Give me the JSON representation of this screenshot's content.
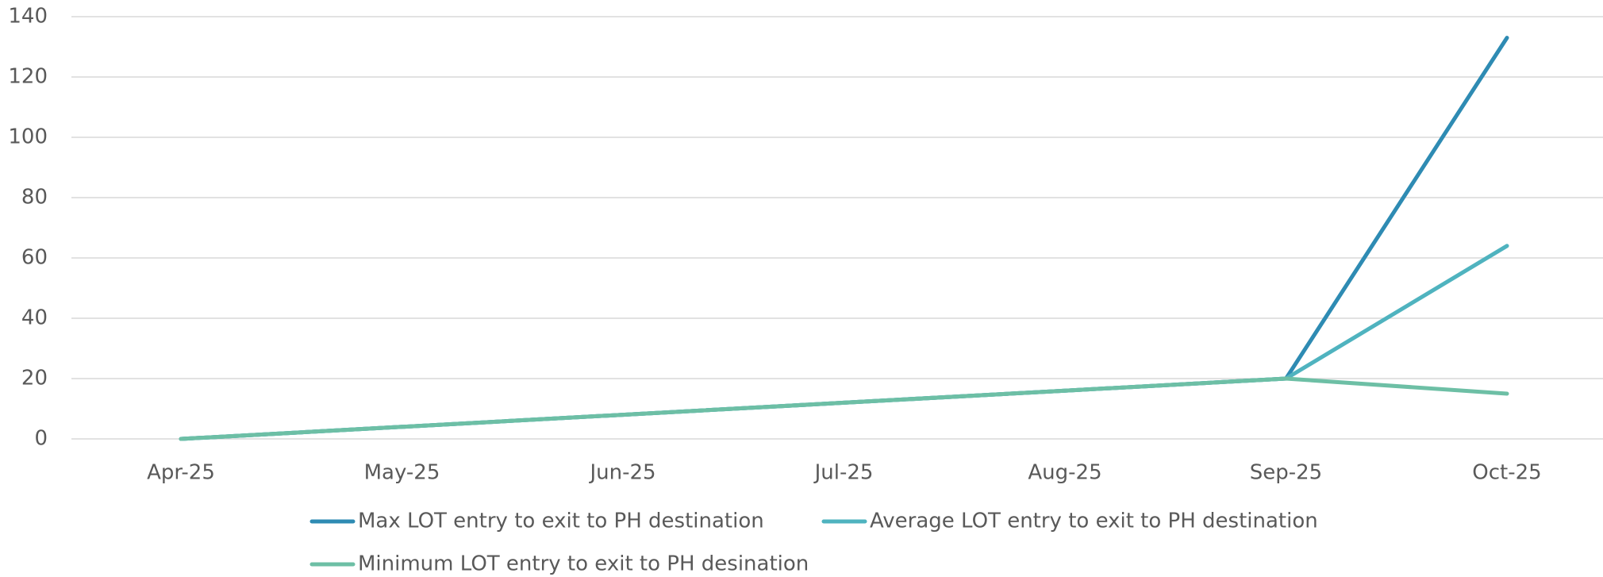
{
  "chart_data": {
    "type": "line",
    "categories": [
      "Apr-25",
      "May-25",
      "Jun-25",
      "Jul-25",
      "Aug-25",
      "Sep-25",
      "Oct-25"
    ],
    "series": [
      {
        "name": "Max LOT entry to exit to PH destination",
        "color": "#2e8bb3",
        "values": [
          0,
          4,
          8,
          12,
          16,
          20,
          133
        ]
      },
      {
        "name": "Average LOT entry to exit to PH destination",
        "color": "#4fb3bf",
        "values": [
          0,
          4,
          8,
          12,
          16,
          20,
          64
        ]
      },
      {
        "name": "Minimum LOT entry to exit to PH desination",
        "color": "#6dbfa5",
        "values": [
          0,
          4,
          8,
          12,
          16,
          20,
          15
        ]
      }
    ],
    "ylim": [
      0,
      140
    ],
    "yticks": [
      0,
      20,
      40,
      60,
      80,
      100,
      120,
      140
    ],
    "grid": true,
    "legend": "bottom"
  }
}
